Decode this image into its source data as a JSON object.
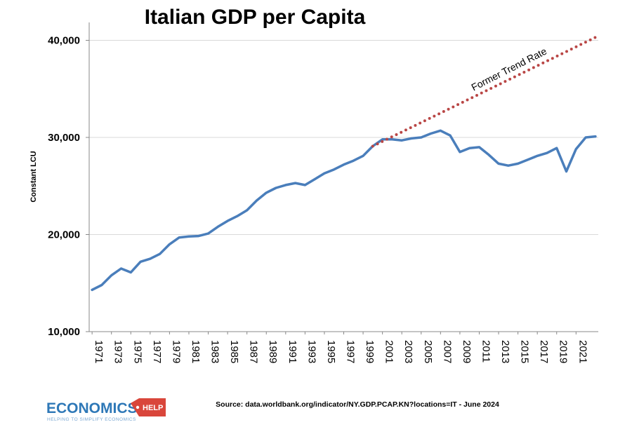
{
  "chart_data": {
    "type": "line",
    "title": "Italian GDP per Capita",
    "xlabel": "",
    "ylabel": "Constant LCU",
    "ylim": [
      10000,
      42000
    ],
    "yticks": [
      10000,
      20000,
      30000,
      40000
    ],
    "ytick_labels": [
      "10,000",
      "20,000",
      "30,000",
      "40,000"
    ],
    "x_tick_labels": [
      "1971",
      "1973",
      "1975",
      "1977",
      "1979",
      "1981",
      "1983",
      "1985",
      "1987",
      "1989",
      "1991",
      "1993",
      "1995",
      "1997",
      "1999",
      "2001",
      "2003",
      "2005",
      "2007",
      "2009",
      "2011",
      "2013",
      "2015",
      "2017",
      "2019",
      "2021"
    ],
    "grid": true,
    "series": [
      {
        "name": "GDP per capita",
        "color": "#4a7ebb",
        "style": "solid",
        "x": [
          1971,
          1972,
          1973,
          1974,
          1975,
          1976,
          1977,
          1978,
          1979,
          1980,
          1981,
          1982,
          1983,
          1984,
          1985,
          1986,
          1987,
          1988,
          1989,
          1990,
          1991,
          1992,
          1993,
          1994,
          1995,
          1996,
          1997,
          1998,
          1999,
          2000,
          2001,
          2002,
          2003,
          2004,
          2005,
          2006,
          2007,
          2008,
          2009,
          2010,
          2011,
          2012,
          2013,
          2014,
          2015,
          2016,
          2017,
          2018,
          2019,
          2020,
          2021,
          2022,
          2023
        ],
        "values": [
          14300,
          14800,
          15800,
          16500,
          16100,
          17200,
          17500,
          18000,
          19000,
          19700,
          19800,
          19850,
          20100,
          20800,
          21400,
          21900,
          22500,
          23500,
          24300,
          24800,
          25100,
          25300,
          25100,
          25700,
          26300,
          26700,
          27200,
          27600,
          28100,
          29100,
          29800,
          29800,
          29700,
          29900,
          30000,
          30400,
          30700,
          30200,
          28500,
          28900,
          29000,
          28200,
          27300,
          27100,
          27300,
          27700,
          28100,
          28400,
          28900,
          26500,
          28800,
          30000,
          30100
        ]
      },
      {
        "name": "Former Trend Rate",
        "color": "#b94645",
        "style": "dotted",
        "x": [
          2000,
          2023
        ],
        "values": [
          29100,
          40300
        ]
      }
    ],
    "annotations": [
      {
        "text": "Former Trend Rate",
        "x": 2011.5,
        "y": 34500
      }
    ],
    "source": "Source: data.worldbank.org/indicator/NY.GDP.PCAP.KN?locations=IT - June 2024"
  },
  "logo": {
    "main": "ECONOMICS",
    "help": "HELP",
    "tagline": "HELPING TO SIMPLIFY ECONOMICS"
  }
}
